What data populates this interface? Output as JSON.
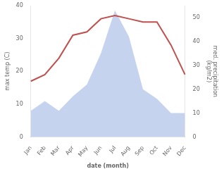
{
  "chart_data": {
    "type": "line",
    "categories": [
      "Jan",
      "Feb",
      "Mar",
      "Apr",
      "May",
      "Jun",
      "Jul",
      "Aug",
      "Sep",
      "Oct",
      "Nov",
      "Dec"
    ],
    "series": [
      {
        "type": "area",
        "color": "#c5d3ee",
        "axis": "y2",
        "values": [
          11,
          15,
          11,
          17,
          22,
          35,
          53,
          42,
          20,
          16,
          10,
          10
        ]
      },
      {
        "type": "line",
        "color": "#c0504d",
        "values": [
          17,
          19,
          24,
          31,
          32,
          36,
          37,
          36,
          35,
          35,
          28,
          19
        ]
      }
    ],
    "xlabel": "date (month)",
    "ylabel": "max temp (C)",
    "y2label": "med. precipitation\n(kg/m2)",
    "ylim": [
      0,
      40
    ],
    "yticks": [
      0,
      10,
      20,
      30,
      40
    ],
    "y2lim": [
      0,
      55
    ],
    "y2ticks": [
      0,
      10,
      20,
      30,
      40,
      50
    ],
    "grid": false
  }
}
